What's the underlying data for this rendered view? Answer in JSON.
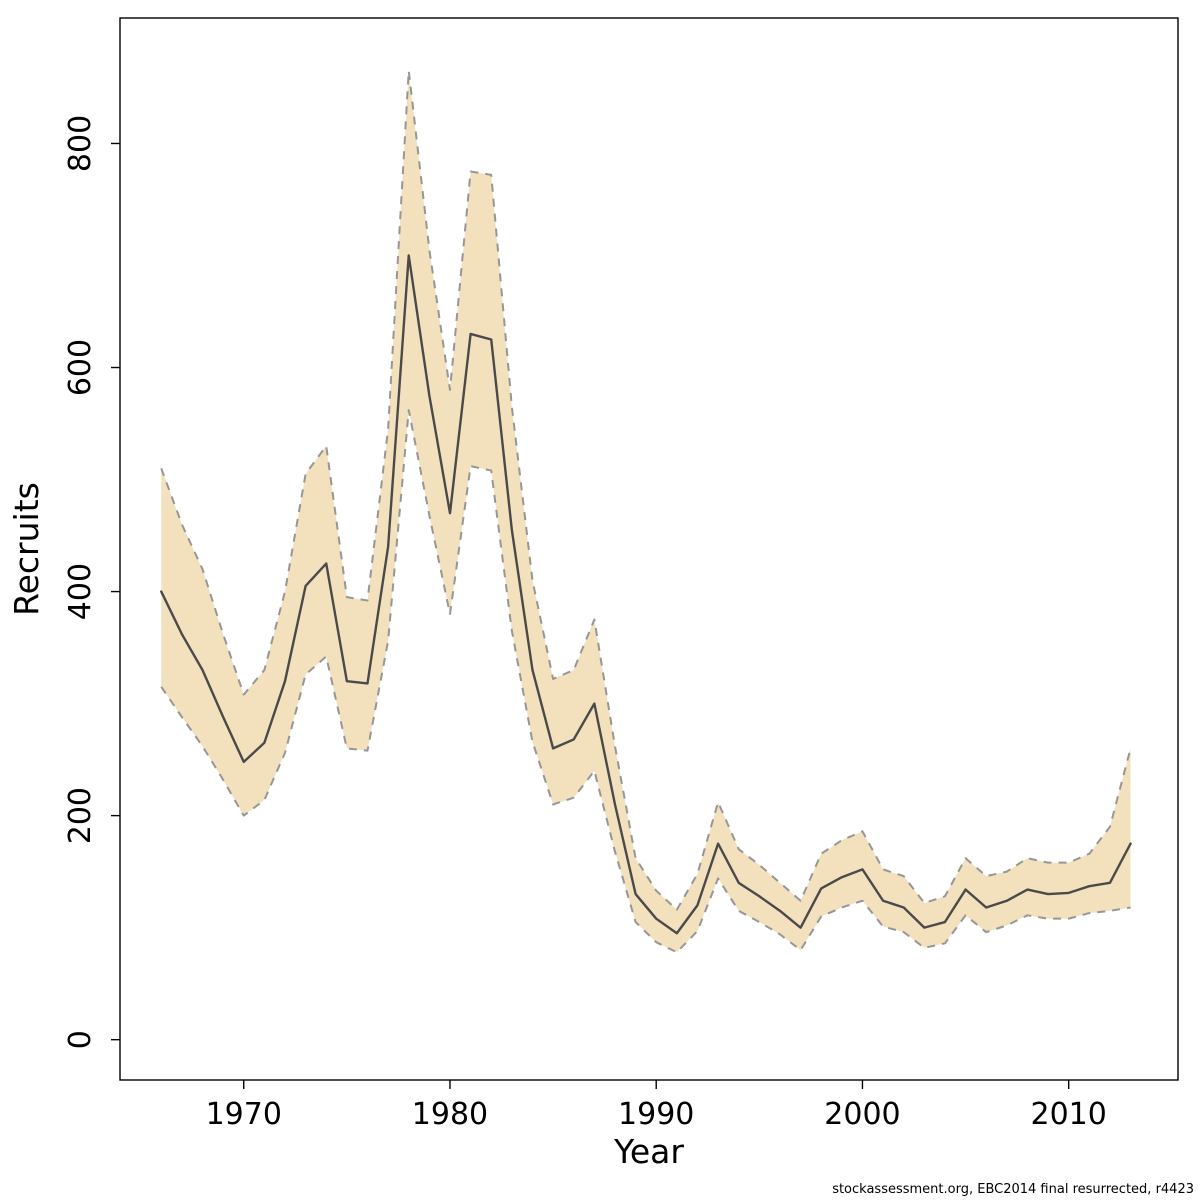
{
  "footer": {
    "text": "stockassessment.org, EBC2014 final resurrected, r4423"
  },
  "chart_data": {
    "type": "line",
    "title": "",
    "xlabel": "Year",
    "ylabel": "Recruits",
    "x": [
      1966,
      1967,
      1968,
      1969,
      1970,
      1971,
      1972,
      1973,
      1974,
      1975,
      1976,
      1977,
      1978,
      1979,
      1980,
      1981,
      1982,
      1983,
      1984,
      1985,
      1986,
      1987,
      1988,
      1989,
      1990,
      1991,
      1992,
      1993,
      1994,
      1995,
      1996,
      1997,
      1998,
      1999,
      2000,
      2001,
      2002,
      2003,
      2004,
      2005,
      2006,
      2007,
      2008,
      2009,
      2010,
      2011,
      2012,
      2013
    ],
    "series": [
      {
        "name": "estimate",
        "values": [
          400,
          362,
          330,
          288,
          248,
          265,
          320,
          405,
          425,
          320,
          318,
          440,
          700,
          575,
          470,
          630,
          625,
          455,
          330,
          260,
          268,
          300,
          210,
          130,
          108,
          95,
          120,
          175,
          140,
          128,
          115,
          100,
          135,
          145,
          152,
          124,
          118,
          100,
          105,
          134,
          118,
          124,
          134,
          130,
          131,
          137,
          140,
          175
        ]
      },
      {
        "name": "upper",
        "values": [
          510,
          460,
          420,
          362,
          308,
          330,
          400,
          505,
          530,
          395,
          392,
          545,
          865,
          705,
          580,
          775,
          772,
          565,
          410,
          322,
          330,
          375,
          262,
          162,
          133,
          116,
          148,
          212,
          170,
          156,
          140,
          124,
          166,
          178,
          186,
          152,
          146,
          122,
          128,
          162,
          146,
          150,
          162,
          158,
          158,
          166,
          190,
          260
        ]
      },
      {
        "name": "lower",
        "values": [
          315,
          288,
          262,
          232,
          200,
          214,
          256,
          326,
          342,
          260,
          258,
          356,
          562,
          468,
          380,
          512,
          508,
          365,
          266,
          210,
          216,
          240,
          168,
          105,
          87,
          78,
          97,
          144,
          115,
          105,
          94,
          80,
          110,
          118,
          124,
          101,
          96,
          82,
          86,
          111,
          96,
          102,
          111,
          108,
          108,
          113,
          115,
          118
        ]
      }
    ],
    "xlim": [
      1964.0,
      2015.3
    ],
    "ylim": [
      -36,
      912
    ],
    "x_ticks": [
      1970,
      1980,
      1990,
      2000,
      2010
    ],
    "y_ticks": [
      0,
      200,
      400,
      600,
      800
    ],
    "grid": false,
    "legend": "none",
    "band_color": "#f3e1bd",
    "band_edge_color": "#969696",
    "line_color": "#4a4a4a"
  }
}
